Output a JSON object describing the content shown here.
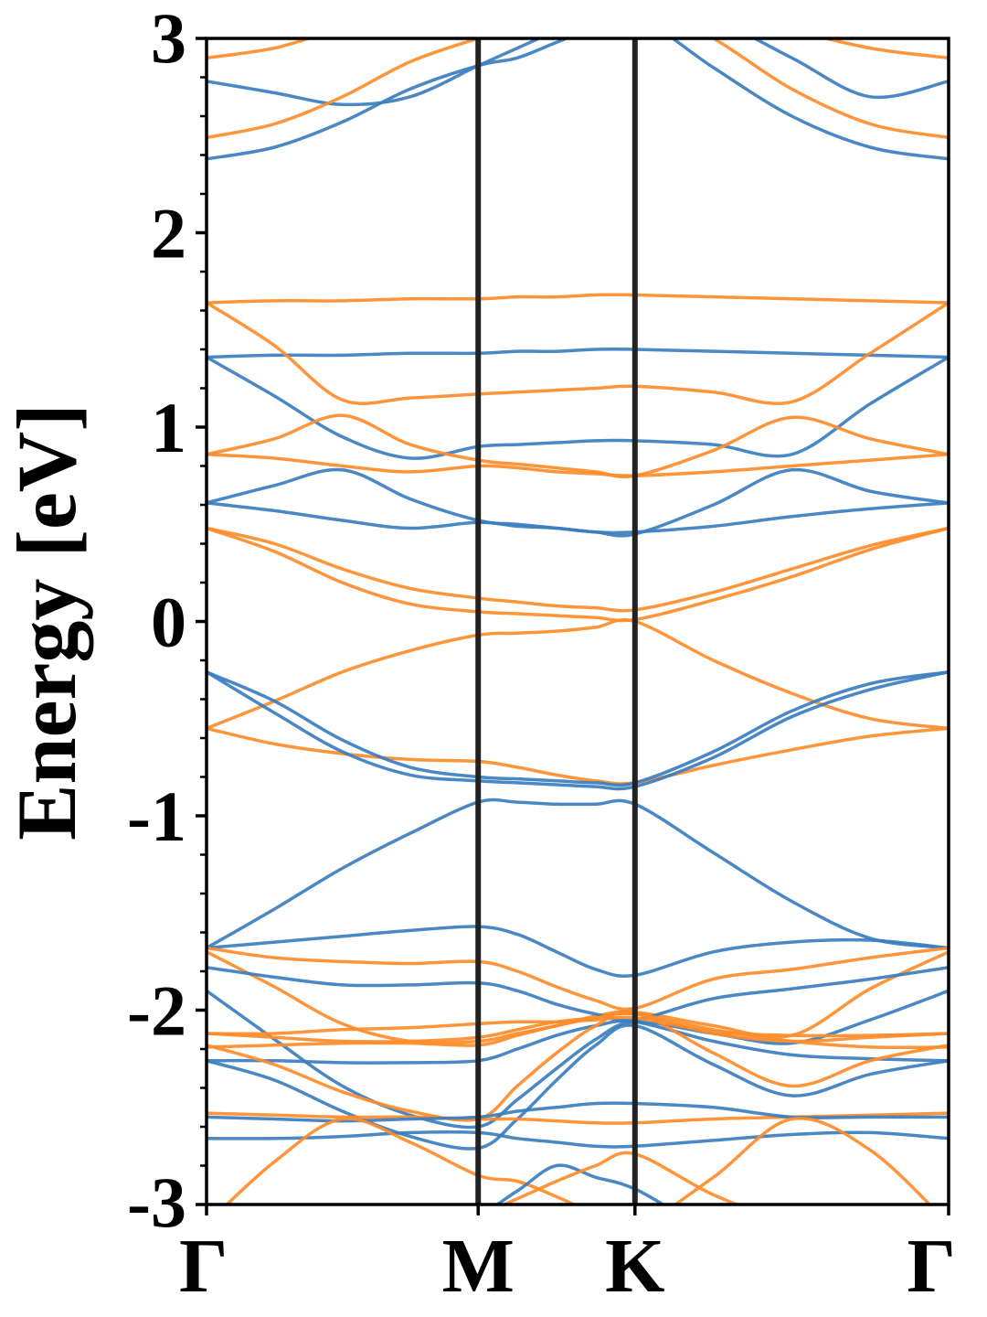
{
  "chart_data": {
    "type": "line",
    "title": "",
    "xlabel": "",
    "ylabel": "Energy [eV]",
    "ylim": [
      -3,
      3
    ],
    "yticks": [
      "-3",
      "-2",
      "-1",
      "0",
      "1",
      "2",
      "3"
    ],
    "kpath_labels": [
      "Γ",
      "M",
      "K",
      "Γ"
    ],
    "kpath_positions": [
      0,
      0.5774,
      0.9107,
      1.5774
    ],
    "grid": false,
    "legend": "none",
    "colors": {
      "blue": "#3a7ebf",
      "orange": "#ff8c2a",
      "divider": "#222222"
    },
    "series": [
      {
        "color": "blue",
        "x": [
          0,
          0.1443,
          0.2886,
          0.433,
          0.5774,
          0.6607,
          0.744,
          0.8274,
          0.9107,
          1.0774,
          1.2441,
          1.4107,
          1.5774
        ],
        "y": [
          1.36,
          1.16,
          0.95,
          0.84,
          0.9,
          0.91,
          0.92,
          0.93,
          0.93,
          0.91,
          0.86,
          1.12,
          1.36
        ]
      },
      {
        "color": "blue",
        "x": [
          0,
          0.1443,
          0.2886,
          0.433,
          0.5774,
          0.6607,
          0.744,
          0.8274,
          0.9107,
          1.0774,
          1.2441,
          1.4107,
          1.5774
        ],
        "y": [
          1.36,
          1.37,
          1.37,
          1.38,
          1.38,
          1.39,
          1.39,
          1.4,
          1.4,
          1.39,
          1.38,
          1.37,
          1.36
        ]
      },
      {
        "color": "blue",
        "x": [
          0,
          0.1443,
          0.2886,
          0.433,
          0.5774,
          0.6607,
          0.744,
          0.8274,
          0.9107,
          1.0774,
          1.2441,
          1.4107,
          1.5774
        ],
        "y": [
          0.61,
          0.7,
          0.78,
          0.63,
          0.52,
          0.5,
          0.48,
          0.46,
          0.45,
          0.6,
          0.78,
          0.67,
          0.61
        ]
      },
      {
        "color": "blue",
        "x": [
          0,
          0.1443,
          0.2886,
          0.433,
          0.5774,
          0.6607,
          0.744,
          0.8274,
          0.9107,
          1.0774,
          1.2441,
          1.4107,
          1.5774
        ],
        "y": [
          0.61,
          0.57,
          0.52,
          0.48,
          0.51,
          0.49,
          0.48,
          0.46,
          0.46,
          0.49,
          0.54,
          0.58,
          0.61
        ]
      },
      {
        "color": "orange",
        "x": [
          0,
          0.1443,
          0.2886,
          0.433,
          0.5774,
          0.6607,
          0.744,
          0.8274,
          0.9107,
          1.0774,
          1.2441,
          1.4107,
          1.5774
        ],
        "y": [
          1.64,
          1.65,
          1.65,
          1.66,
          1.66,
          1.67,
          1.67,
          1.68,
          1.68,
          1.67,
          1.66,
          1.65,
          1.64
        ]
      },
      {
        "color": "orange",
        "x": [
          0,
          0.1443,
          0.2886,
          0.433,
          0.5774,
          0.6607,
          0.744,
          0.8274,
          0.9107,
          1.0774,
          1.2441,
          1.4107,
          1.5774
        ],
        "y": [
          1.64,
          1.42,
          1.14,
          1.15,
          1.17,
          1.18,
          1.19,
          1.2,
          1.21,
          1.18,
          1.13,
          1.38,
          1.64
        ]
      },
      {
        "color": "orange",
        "x": [
          0,
          0.1443,
          0.2886,
          0.433,
          0.5774,
          0.6607,
          0.744,
          0.8274,
          0.9107,
          1.0774,
          1.2441,
          1.4107,
          1.5774
        ],
        "y": [
          0.86,
          0.94,
          1.06,
          0.91,
          0.83,
          0.81,
          0.79,
          0.77,
          0.75,
          0.88,
          1.05,
          0.94,
          0.86
        ]
      },
      {
        "color": "orange",
        "x": [
          0,
          0.1443,
          0.2886,
          0.433,
          0.5774,
          0.6607,
          0.744,
          0.8274,
          0.9107,
          1.0774,
          1.2441,
          1.4107,
          1.5774
        ],
        "y": [
          0.86,
          0.84,
          0.8,
          0.77,
          0.8,
          0.79,
          0.77,
          0.76,
          0.75,
          0.77,
          0.8,
          0.83,
          0.86
        ]
      },
      {
        "color": "orange",
        "x": [
          0,
          0.1443,
          0.2886,
          0.433,
          0.5774,
          0.6607,
          0.744,
          0.8274,
          0.9107,
          1.0774,
          1.2441,
          1.4107,
          1.5774
        ],
        "y": [
          0.48,
          0.4,
          0.27,
          0.17,
          0.12,
          0.1,
          0.08,
          0.07,
          0.06,
          0.15,
          0.27,
          0.39,
          0.48
        ]
      },
      {
        "color": "orange",
        "x": [
          0,
          0.1443,
          0.2886,
          0.433,
          0.5774,
          0.6607,
          0.744,
          0.8274,
          0.9107,
          1.0774,
          1.2441,
          1.4107,
          1.5774
        ],
        "y": [
          0.48,
          0.36,
          0.2,
          0.09,
          0.05,
          0.04,
          0.03,
          0.02,
          0.01,
          0.11,
          0.23,
          0.37,
          0.48
        ]
      },
      {
        "color": "orange",
        "x": [
          0,
          0.1443,
          0.2886,
          0.433,
          0.5774,
          0.6607,
          0.744,
          0.8274,
          0.9107,
          1.0774,
          1.2441,
          1.4107,
          1.5774
        ],
        "y": [
          -0.55,
          -0.41,
          -0.26,
          -0.15,
          -0.07,
          -0.06,
          -0.05,
          -0.03,
          0.0,
          -0.2,
          -0.37,
          -0.5,
          -0.55
        ]
      },
      {
        "color": "orange",
        "x": [
          0,
          0.1443,
          0.2886,
          0.433,
          0.5774,
          0.6607,
          0.744,
          0.8274,
          0.9107,
          1.0774,
          1.2441,
          1.4107,
          1.5774
        ],
        "y": [
          -0.55,
          -0.63,
          -0.68,
          -0.71,
          -0.72,
          -0.75,
          -0.79,
          -0.82,
          -0.83,
          -0.74,
          -0.66,
          -0.59,
          -0.55
        ]
      },
      {
        "color": "blue",
        "x": [
          0,
          0.1443,
          0.2886,
          0.433,
          0.5774,
          0.6607,
          0.744,
          0.8274,
          0.9107,
          1.0774,
          1.2441,
          1.4107,
          1.5774
        ],
        "y": [
          -0.26,
          -0.41,
          -0.61,
          -0.75,
          -0.8,
          -0.81,
          -0.82,
          -0.83,
          -0.83,
          -0.67,
          -0.46,
          -0.32,
          -0.26
        ]
      },
      {
        "color": "blue",
        "x": [
          0,
          0.1443,
          0.2886,
          0.433,
          0.5774,
          0.6607,
          0.744,
          0.8274,
          0.9107,
          1.0774,
          1.2441,
          1.4107,
          1.5774
        ],
        "y": [
          -0.26,
          -0.47,
          -0.67,
          -0.79,
          -0.82,
          -0.83,
          -0.84,
          -0.85,
          -0.85,
          -0.7,
          -0.49,
          -0.35,
          -0.26
        ]
      },
      {
        "color": "blue",
        "x": [
          0,
          0.1443,
          0.2886,
          0.433,
          0.5774,
          0.6607,
          0.744,
          0.8274,
          0.9107,
          1.0774,
          1.2441,
          1.4107,
          1.5774
        ],
        "y": [
          -1.68,
          -1.48,
          -1.27,
          -1.09,
          -0.93,
          -0.93,
          -0.94,
          -0.94,
          -0.94,
          -1.19,
          -1.44,
          -1.63,
          -1.68
        ]
      },
      {
        "color": "blue",
        "x": [
          0,
          0.1443,
          0.2886,
          0.433,
          0.5774,
          0.6607,
          0.744,
          0.8274,
          0.9107,
          1.0774,
          1.2441,
          1.4107,
          1.5774
        ],
        "y": [
          -1.68,
          -1.65,
          -1.62,
          -1.59,
          -1.57,
          -1.61,
          -1.7,
          -1.79,
          -1.82,
          -1.7,
          -1.65,
          -1.64,
          -1.68
        ]
      },
      {
        "color": "orange",
        "x": [
          0,
          0.1443,
          0.2886,
          0.433,
          0.5774,
          0.6607,
          0.744,
          0.8274,
          0.9107,
          1.0774,
          1.2441,
          1.4107,
          1.5774
        ],
        "y": [
          -1.68,
          -1.73,
          -1.75,
          -1.76,
          -1.75,
          -1.8,
          -1.88,
          -1.95,
          -1.99,
          -1.84,
          -1.79,
          -1.73,
          -1.68
        ]
      },
      {
        "color": "orange",
        "x": [
          0,
          0.1443,
          0.2886,
          0.433,
          0.5774,
          0.6607,
          0.744,
          0.8274,
          0.9107,
          1.0774,
          1.2441,
          1.4107,
          1.5774
        ],
        "y": [
          -1.7,
          -1.88,
          -2.07,
          -2.16,
          -2.16,
          -2.12,
          -2.08,
          -2.03,
          -2.01,
          -2.08,
          -2.13,
          -1.89,
          -1.7
        ]
      },
      {
        "color": "blue",
        "x": [
          0,
          0.1443,
          0.2886,
          0.433,
          0.5774,
          0.6607,
          0.744,
          0.8274,
          0.9107,
          1.0774,
          1.2441,
          1.4107,
          1.5774
        ],
        "y": [
          -1.78,
          -1.83,
          -1.87,
          -1.87,
          -1.86,
          -1.9,
          -1.97,
          -2.02,
          -2.05,
          -1.94,
          -1.89,
          -1.84,
          -1.78
        ]
      },
      {
        "color": "blue",
        "x": [
          0,
          0.1443,
          0.2886,
          0.433,
          0.5774,
          0.6607,
          0.744,
          0.8274,
          0.9107,
          1.0774,
          1.2441,
          1.4107,
          1.5774
        ],
        "y": [
          -1.9,
          -2.15,
          -2.39,
          -2.54,
          -2.6,
          -2.46,
          -2.3,
          -2.15,
          -2.06,
          -2.12,
          -2.17,
          -2.05,
          -1.9
        ]
      },
      {
        "color": "orange",
        "x": [
          0,
          0.1443,
          0.2886,
          0.433,
          0.5774,
          0.6607,
          0.744,
          0.8274,
          0.9107,
          1.0774,
          1.2441,
          1.4107,
          1.5774
        ],
        "y": [
          -2.12,
          -2.14,
          -2.16,
          -2.16,
          -2.14,
          -2.1,
          -2.06,
          -2.04,
          -2.02,
          -2.12,
          -2.16,
          -2.14,
          -2.12
        ]
      },
      {
        "color": "orange",
        "x": [
          0,
          0.1443,
          0.2886,
          0.433,
          0.5774,
          0.6607,
          0.744,
          0.8274,
          0.9107,
          1.0774,
          1.2441,
          1.4107,
          1.5774
        ],
        "y": [
          -2.12,
          -2.12,
          -2.1,
          -2.09,
          -2.07,
          -2.06,
          -2.06,
          -2.05,
          -2.04,
          -2.11,
          -2.13,
          -2.13,
          -2.12
        ]
      },
      {
        "color": "orange",
        "x": [
          0,
          0.1443,
          0.2886,
          0.433,
          0.5774,
          0.6607,
          0.744,
          0.8274,
          0.9107,
          1.0774,
          1.2441,
          1.4107,
          1.5774
        ],
        "y": [
          -2.19,
          -2.18,
          -2.17,
          -2.17,
          -2.18,
          -2.13,
          -2.08,
          -2.04,
          -2.02,
          -2.1,
          -2.16,
          -2.19,
          -2.19
        ]
      },
      {
        "color": "blue",
        "x": [
          0,
          0.1443,
          0.2886,
          0.433,
          0.5774,
          0.6607,
          0.744,
          0.8274,
          0.9107,
          1.0774,
          1.2441,
          1.4107,
          1.5774
        ],
        "y": [
          -2.26,
          -2.26,
          -2.27,
          -2.27,
          -2.26,
          -2.2,
          -2.13,
          -2.08,
          -2.06,
          -2.16,
          -2.23,
          -2.25,
          -2.26
        ]
      },
      {
        "color": "blue",
        "x": [
          0,
          0.1443,
          0.2886,
          0.433,
          0.5774,
          0.6607,
          0.744,
          0.8274,
          0.9107,
          1.0774,
          1.2441,
          1.4107,
          1.5774
        ],
        "y": [
          -2.26,
          -2.36,
          -2.52,
          -2.65,
          -2.71,
          -2.56,
          -2.36,
          -2.18,
          -2.08,
          -2.28,
          -2.44,
          -2.33,
          -2.26
        ]
      },
      {
        "color": "orange",
        "x": [
          0,
          0.1443,
          0.2886,
          0.433,
          0.5774,
          0.6607,
          0.744,
          0.8274,
          0.9107,
          1.0774,
          1.2441,
          1.4107,
          1.5774
        ],
        "y": [
          -2.18,
          -2.28,
          -2.42,
          -2.52,
          -2.56,
          -2.39,
          -2.22,
          -2.08,
          -2.01,
          -2.22,
          -2.39,
          -2.26,
          -2.18
        ]
      },
      {
        "color": "orange",
        "x": [
          0,
          0.1443,
          0.2886,
          0.433,
          0.5774,
          0.6607,
          0.744,
          0.8274,
          0.9107,
          1.0774,
          1.2441,
          1.4107,
          1.5774
        ],
        "y": [
          -2.53,
          -2.54,
          -2.55,
          -2.55,
          -2.56,
          -2.56,
          -2.57,
          -2.58,
          -2.58,
          -2.56,
          -2.55,
          -2.54,
          -2.53
        ]
      },
      {
        "color": "blue",
        "x": [
          0,
          0.1443,
          0.2886,
          0.433,
          0.5774,
          0.6607,
          0.744,
          0.8274,
          0.9107,
          1.0774,
          1.2441,
          1.4107,
          1.5774
        ],
        "y": [
          -2.55,
          -2.56,
          -2.57,
          -2.56,
          -2.55,
          -2.52,
          -2.5,
          -2.48,
          -2.48,
          -2.5,
          -2.55,
          -2.55,
          -2.55
        ]
      },
      {
        "color": "blue",
        "x": [
          0,
          0.1443,
          0.2886,
          0.433,
          0.5774,
          0.6607,
          0.744,
          0.8274,
          0.9107,
          1.0774,
          1.2441,
          1.4107,
          1.5774
        ],
        "y": [
          -2.66,
          -2.66,
          -2.65,
          -2.63,
          -2.63,
          -2.66,
          -2.68,
          -2.7,
          -2.7,
          -2.67,
          -2.64,
          -2.63,
          -2.66
        ]
      },
      {
        "color": "orange",
        "x": [
          0,
          0.1443,
          0.2886,
          0.433,
          0.5774,
          0.6607,
          0.744,
          0.8274,
          0.9107,
          1.0774,
          1.2441,
          1.4107,
          1.5774
        ],
        "y": [
          -3.1,
          -2.78,
          -2.56,
          -2.68,
          -2.85,
          -2.88,
          -2.96,
          -3.05,
          -3.12,
          -2.86,
          -2.56,
          -2.72,
          -3.1
        ]
      },
      {
        "color": "blue",
        "x": [
          0,
          0.1443,
          0.2886,
          0.433,
          0.5774,
          0.6607,
          0.744,
          0.8274,
          0.9107,
          1.0774,
          1.2441,
          1.4107,
          1.5774
        ],
        "y": [
          -3.2,
          -3.05,
          -3.02,
          -3.15,
          -3.05,
          -2.93,
          -2.8,
          -2.86,
          -2.92,
          -3.12,
          -3.08,
          -3.02,
          -3.2
        ]
      },
      {
        "color": "orange",
        "x": [
          0,
          0.1443,
          0.2886,
          0.433,
          0.5774,
          0.6607,
          0.744,
          0.8274,
          0.9107,
          1.0774,
          1.2441,
          1.4107,
          1.5774
        ],
        "y": [
          -3.3,
          -3.25,
          -3.2,
          -3.12,
          -3.05,
          -2.97,
          -2.88,
          -2.8,
          -2.74,
          -2.95,
          -3.1,
          -3.2,
          -3.3
        ]
      },
      {
        "color": "blue",
        "x": [
          0,
          0.1443,
          0.2886,
          0.433,
          0.5774,
          0.6607,
          0.744,
          0.8274,
          0.9107,
          1.0774,
          1.2441,
          1.4107,
          1.5774
        ],
        "y": [
          2.78,
          2.72,
          2.66,
          2.7,
          2.86,
          2.95,
          3.04,
          3.12,
          3.2,
          3.1,
          2.9,
          2.7,
          2.78
        ]
      },
      {
        "color": "orange",
        "x": [
          0,
          0.1443,
          0.2886,
          0.433,
          0.5774,
          0.6607,
          0.744,
          0.8274,
          0.9107,
          1.0774,
          1.2441,
          1.4107,
          1.5774
        ],
        "y": [
          2.9,
          2.95,
          3.05,
          3.1,
          3.12,
          3.18,
          3.25,
          3.3,
          3.35,
          3.2,
          3.05,
          2.95,
          2.9
        ]
      },
      {
        "color": "orange",
        "x": [
          0,
          0.1443,
          0.2886,
          0.433,
          0.5774,
          0.6607,
          0.744,
          0.8274,
          0.9107,
          1.0774,
          1.2441,
          1.4107,
          1.5774
        ],
        "y": [
          2.49,
          2.56,
          2.7,
          2.88,
          3.0,
          3.05,
          3.1,
          3.15,
          3.2,
          3.0,
          2.74,
          2.56,
          2.49
        ]
      },
      {
        "color": "blue",
        "x": [
          0,
          0.1443,
          0.2886,
          0.433,
          0.5774,
          0.6607,
          0.744,
          0.8274,
          0.9107,
          1.0774,
          1.2441,
          1.4107,
          1.5774
        ],
        "y": [
          2.38,
          2.44,
          2.57,
          2.74,
          2.86,
          2.9,
          2.98,
          3.06,
          3.12,
          2.85,
          2.6,
          2.44,
          2.38
        ]
      }
    ]
  }
}
